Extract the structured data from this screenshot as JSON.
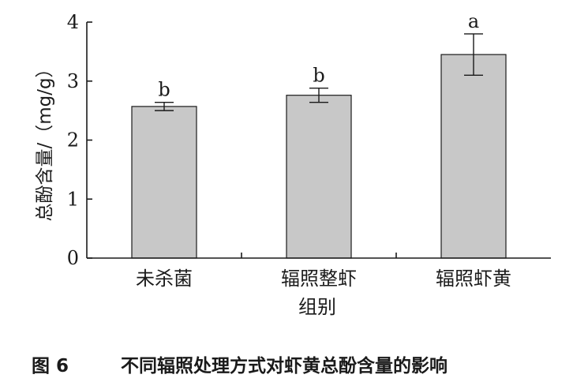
{
  "chart_data": {
    "type": "bar",
    "categories": [
      "未杀菌",
      "辐照整虾",
      "辐照虾黄"
    ],
    "values": [
      2.57,
      2.76,
      3.45
    ],
    "errors": [
      0.07,
      0.12,
      0.35
    ],
    "significance": [
      "b",
      "b",
      "a"
    ],
    "xlabel": "组别",
    "ylabel": "总酚含量/（mg/g）",
    "ylim": [
      0,
      4
    ],
    "yticks": [
      0,
      1,
      2,
      3,
      4
    ],
    "bar_color": "#c8c8c8",
    "grid": false
  },
  "caption": {
    "figure_number": "图 6",
    "text": "不同辐照处理方式对虾黄总酚含量的影响"
  }
}
